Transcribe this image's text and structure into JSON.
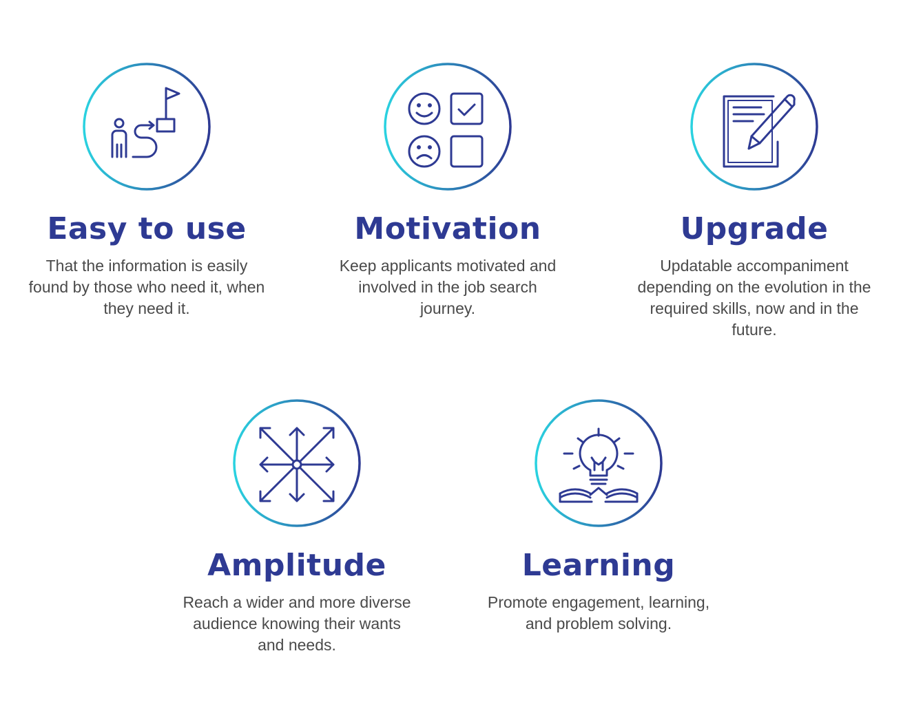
{
  "colors": {
    "title": "#2e3a93",
    "icon": "#2e3a93",
    "ring_start": "#2ad2e0",
    "ring_end": "#2e3a93",
    "text": "#4a4a4a"
  },
  "features": [
    {
      "icon": "person-path-flag-icon",
      "title": "Easy to use",
      "description": "That the information is easily found by those who need it, when they need it."
    },
    {
      "icon": "mood-checklist-icon",
      "title": "Motivation",
      "description": "Keep applicants motivated and involved in the job search journey."
    },
    {
      "icon": "document-pencil-icon",
      "title": "Upgrade",
      "description": "Updatable accompaniment depending on the evolution in the required skills, now and in the future."
    },
    {
      "icon": "arrows-expand-icon",
      "title": "Amplitude",
      "description": "Reach a wider and more diverse audience knowing their wants and needs."
    },
    {
      "icon": "lightbulb-book-icon",
      "title": "Learning",
      "description": "Promote engagement, learning, and problem solving."
    }
  ]
}
